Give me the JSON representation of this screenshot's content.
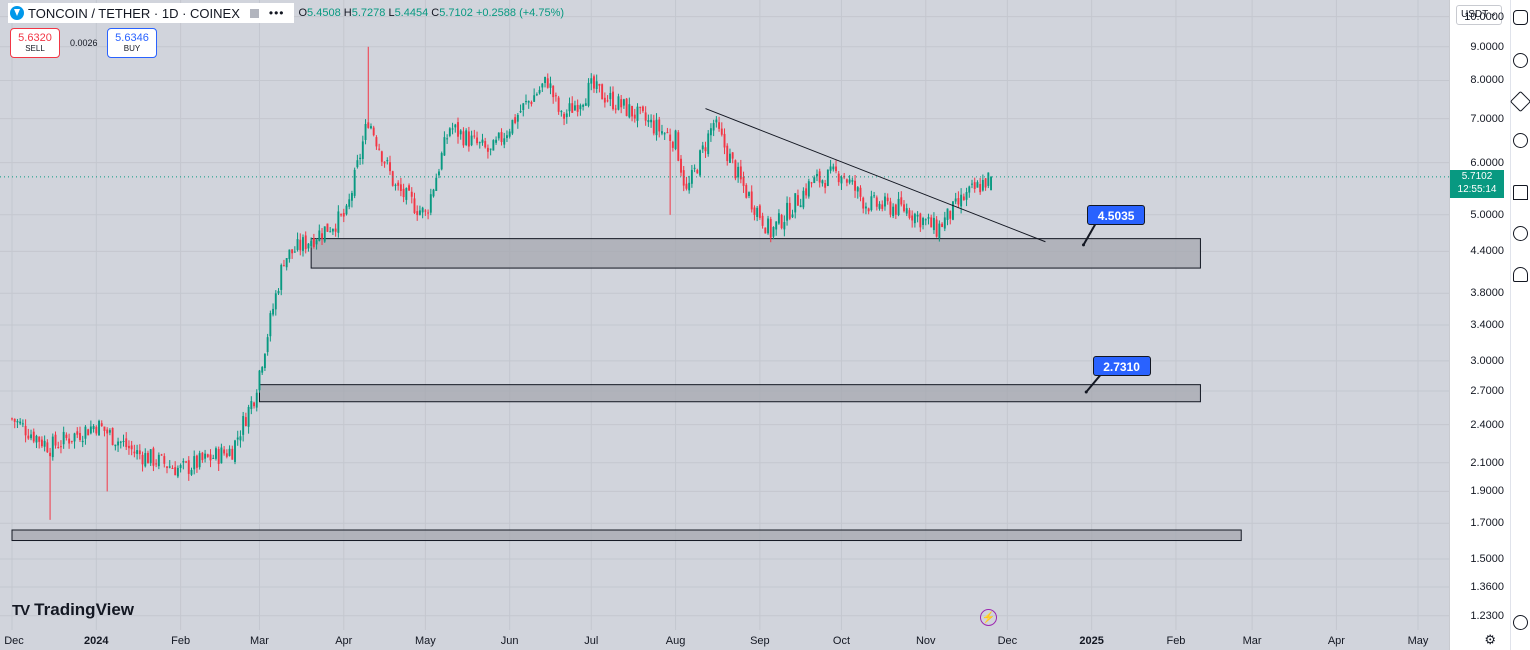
{
  "legend": {
    "symbol": "TONCOIN / TETHER · 1D · COINEX",
    "more_label": "•••",
    "open_label": "O",
    "open": "5.4508",
    "high_label": "H",
    "high": "5.7278",
    "low_label": "L",
    "low": "5.4454",
    "close_label": "C",
    "close": "5.7102",
    "change": "+0.2588 (+4.75%)"
  },
  "trade": {
    "sell_price": "5.6320",
    "sell_label": "SELL",
    "spread": "0.0026",
    "buy_price": "5.6346",
    "buy_label": "BUY"
  },
  "price_axis": {
    "currency": "USDT",
    "last_price": "5.7102",
    "countdown": "12:55:14",
    "scale": "log"
  },
  "branding": {
    "logo_text": "TradingView"
  },
  "colors": {
    "up": "#089981",
    "down": "#f23645",
    "background": "#d1d4dc",
    "callout": "#2962ff",
    "zone": "#a5a8b0"
  },
  "chart_data": {
    "type": "candlestick",
    "title": "TONCOIN / TETHER · 1D · COINEX",
    "y_scale": "log",
    "ylim": [
      1.17,
      10.6
    ],
    "y_ticks": [
      "10.0000",
      "9.0000",
      "8.0000",
      "7.0000",
      "6.0000",
      "5.0000",
      "4.4000",
      "3.8000",
      "3.4000",
      "3.0000",
      "2.7000",
      "2.4000",
      "2.1000",
      "1.9000",
      "1.7000",
      "1.5000",
      "1.3600",
      "1.2300"
    ],
    "x_ticks": [
      {
        "label": "Dec",
        "date": "2023-12-01",
        "bold": false
      },
      {
        "label": "2024",
        "date": "2024-01-01",
        "bold": true
      },
      {
        "label": "Feb",
        "date": "2024-02-01",
        "bold": false
      },
      {
        "label": "Mar",
        "date": "2024-03-01",
        "bold": false
      },
      {
        "label": "Apr",
        "date": "2024-04-01",
        "bold": false
      },
      {
        "label": "May",
        "date": "2024-05-01",
        "bold": false
      },
      {
        "label": "Jun",
        "date": "2024-06-01",
        "bold": false
      },
      {
        "label": "Jul",
        "date": "2024-07-01",
        "bold": false
      },
      {
        "label": "Aug",
        "date": "2024-08-01",
        "bold": false
      },
      {
        "label": "Sep",
        "date": "2024-09-01",
        "bold": false
      },
      {
        "label": "Oct",
        "date": "2024-10-01",
        "bold": false
      },
      {
        "label": "Nov",
        "date": "2024-11-01",
        "bold": false
      },
      {
        "label": "Dec",
        "date": "2024-12-01",
        "bold": false
      },
      {
        "label": "2025",
        "date": "2025-01-01",
        "bold": true
      },
      {
        "label": "Feb",
        "date": "2025-02-01",
        "bold": false
      },
      {
        "label": "Mar",
        "date": "2025-03-01",
        "bold": false
      },
      {
        "label": "Apr",
        "date": "2025-04-01",
        "bold": false
      },
      {
        "label": "May",
        "date": "2025-05-01",
        "bold": false
      }
    ],
    "close_path": [
      {
        "date": "2023-12-01",
        "close": 2.45
      },
      {
        "date": "2023-12-15",
        "close": 2.22
      },
      {
        "date": "2024-01-01",
        "close": 2.4
      },
      {
        "date": "2024-01-15",
        "close": 2.18
      },
      {
        "date": "2024-02-01",
        "close": 2.05
      },
      {
        "date": "2024-02-20",
        "close": 2.2
      },
      {
        "date": "2024-02-28",
        "close": 2.65
      },
      {
        "date": "2024-03-10",
        "close": 4.3
      },
      {
        "date": "2024-03-20",
        "close": 4.6
      },
      {
        "date": "2024-04-02",
        "close": 5.0
      },
      {
        "date": "2024-04-10",
        "close": 7.0
      },
      {
        "date": "2024-04-20",
        "close": 5.5
      },
      {
        "date": "2024-05-01",
        "close": 5.0
      },
      {
        "date": "2024-05-10",
        "close": 6.8
      },
      {
        "date": "2024-05-25",
        "close": 6.2
      },
      {
        "date": "2024-06-05",
        "close": 7.2
      },
      {
        "date": "2024-06-15",
        "close": 8.0
      },
      {
        "date": "2024-06-20",
        "close": 7.0
      },
      {
        "date": "2024-07-01",
        "close": 7.8
      },
      {
        "date": "2024-07-15",
        "close": 7.2
      },
      {
        "date": "2024-08-01",
        "close": 6.5
      },
      {
        "date": "2024-08-05",
        "close": 5.4
      },
      {
        "date": "2024-08-15",
        "close": 6.9
      },
      {
        "date": "2024-08-25",
        "close": 5.6
      },
      {
        "date": "2024-09-05",
        "close": 4.7
      },
      {
        "date": "2024-09-20",
        "close": 5.6
      },
      {
        "date": "2024-10-01",
        "close": 5.8
      },
      {
        "date": "2024-10-10",
        "close": 5.2
      },
      {
        "date": "2024-10-25",
        "close": 5.1
      },
      {
        "date": "2024-11-05",
        "close": 4.75
      },
      {
        "date": "2024-11-15",
        "close": 5.3
      },
      {
        "date": "2024-11-25",
        "close": 5.7102
      }
    ],
    "candle_seed": 7,
    "wicks": [
      {
        "date": "2023-12-15",
        "low": 1.72
      },
      {
        "date": "2024-01-05",
        "low": 1.9
      },
      {
        "date": "2024-04-10",
        "high": 9.0
      },
      {
        "date": "2024-07-30",
        "low": 5.0
      }
    ],
    "zones": [
      {
        "from": "2024-03-20",
        "to": "2025-02-10",
        "low": 4.15,
        "high": 4.6
      },
      {
        "from": "2024-03-01",
        "to": "2025-02-10",
        "low": 2.6,
        "high": 2.76
      },
      {
        "from": "2023-12-01",
        "to": "2025-02-25",
        "low": 1.6,
        "high": 1.66
      }
    ],
    "trendline": {
      "from": {
        "date": "2024-08-12",
        "price": 7.25
      },
      "to": {
        "date": "2024-12-15",
        "price": 4.55
      }
    },
    "annotations": [
      {
        "text": "4.5035",
        "date": "2025-01-10",
        "price": 5.0,
        "tip_date": "2024-12-29",
        "tip_price": 4.5
      },
      {
        "text": "2.7310",
        "date": "2025-01-12",
        "price": 2.95,
        "tip_date": "2024-12-30",
        "tip_price": 2.69
      }
    ]
  }
}
